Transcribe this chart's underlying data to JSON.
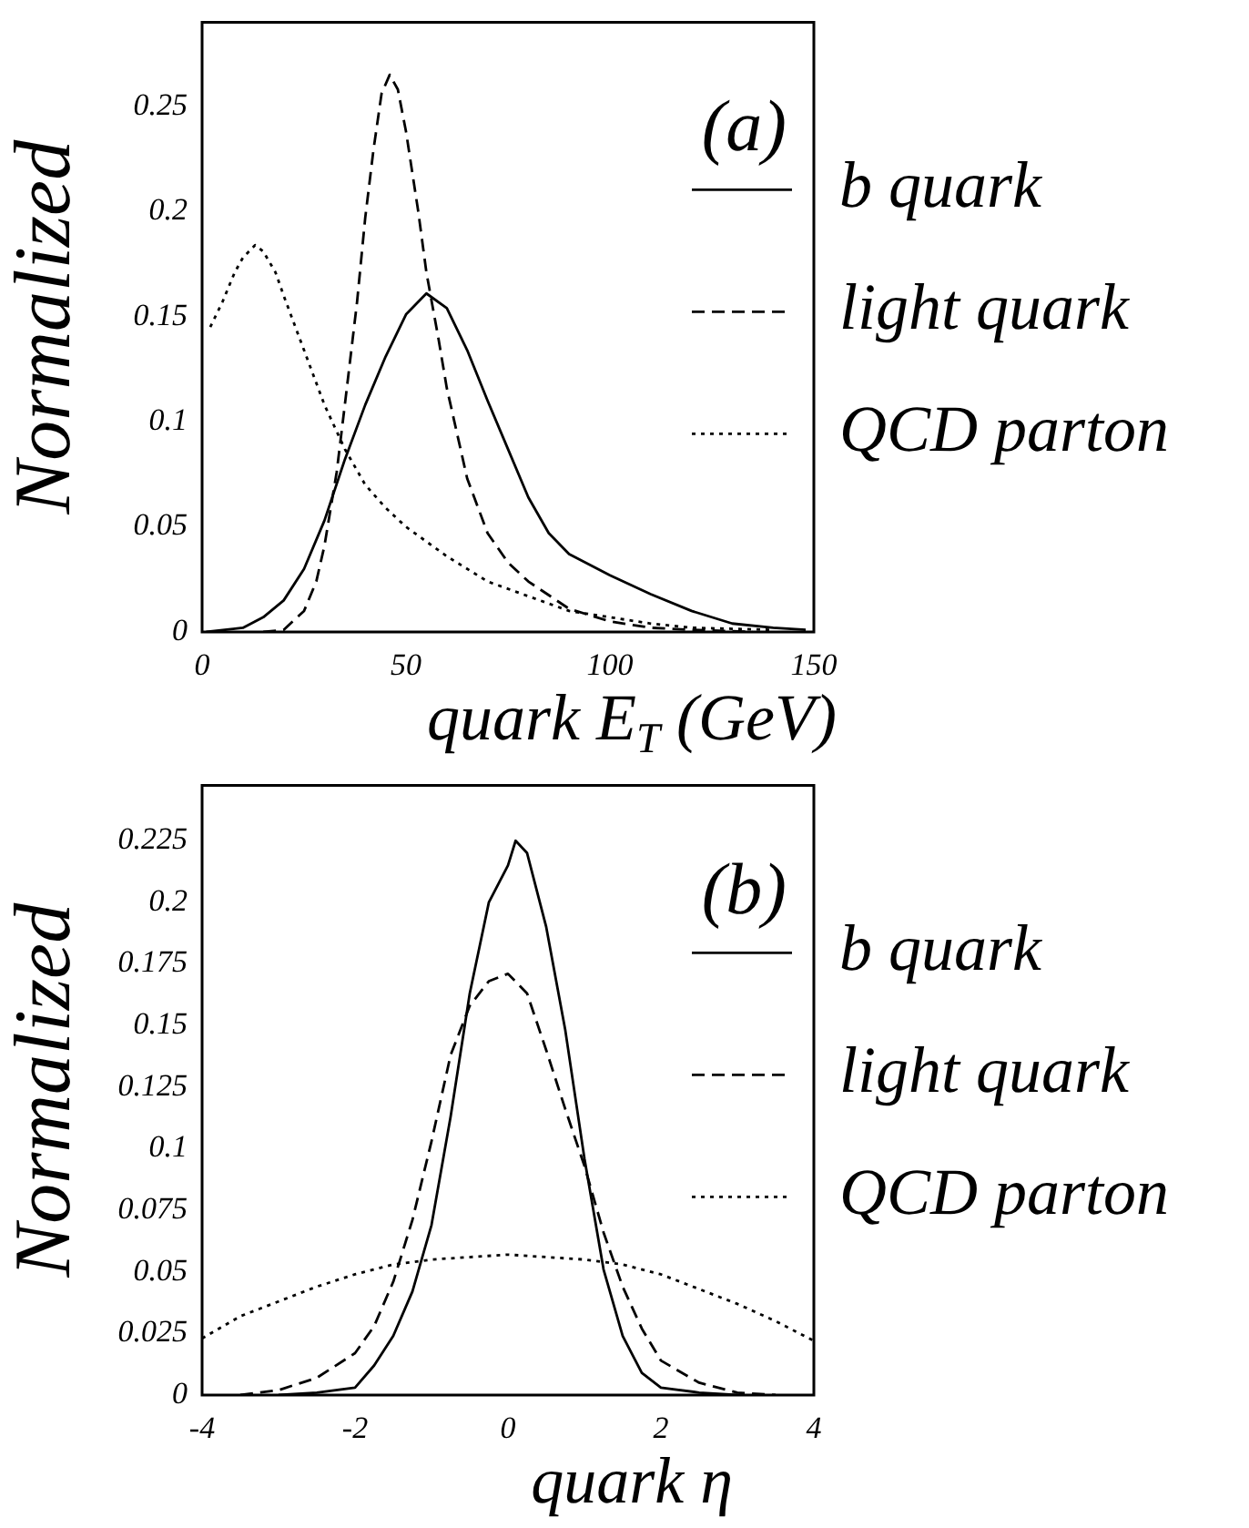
{
  "chart_data": [
    {
      "type": "line",
      "xlabel": "quark E$_{T}$ (GeV)",
      "ylabel": "Normalized",
      "annotations": [
        "(a)"
      ],
      "xlim": [
        0,
        150
      ],
      "xticks": [
        0,
        50,
        100,
        150
      ],
      "ylim": [
        0,
        0.29
      ],
      "yticks": [
        0,
        0.05,
        0.1,
        0.15,
        0.2,
        0.25
      ],
      "legend": "right",
      "marker": "none",
      "series": [
        {
          "name": "b quark",
          "color": "#000000",
          "line_style": "solid",
          "x": [
            1,
            10,
            15,
            20,
            25,
            30,
            35,
            40,
            45,
            50,
            55,
            60,
            65,
            70,
            75,
            80,
            85,
            90,
            100,
            110,
            120,
            130,
            140,
            148
          ],
          "values": [
            0,
            0.002,
            0.007,
            0.015,
            0.03,
            0.053,
            0.082,
            0.108,
            0.131,
            0.151,
            0.161,
            0.154,
            0.134,
            0.11,
            0.087,
            0.064,
            0.047,
            0.037,
            0.027,
            0.018,
            0.01,
            0.004,
            0.002,
            0.001
          ]
        },
        {
          "name": "light quark",
          "color": "#000000",
          "line_style": "dashed",
          "x": [
            15,
            20,
            25,
            28,
            30,
            33,
            35,
            38,
            40,
            42,
            44,
            46,
            48,
            50,
            53,
            55,
            58,
            60,
            65,
            70,
            75,
            80,
            90,
            100,
            110,
            120,
            135
          ],
          "values": [
            0,
            0.001,
            0.01,
            0.024,
            0.041,
            0.076,
            0.108,
            0.157,
            0.197,
            0.229,
            0.256,
            0.265,
            0.258,
            0.238,
            0.2,
            0.171,
            0.139,
            0.116,
            0.073,
            0.047,
            0.033,
            0.024,
            0.011,
            0.005,
            0.002,
            0.001,
            0
          ]
        },
        {
          "name": "QCD parton",
          "color": "#000000",
          "line_style": "dotted",
          "x": [
            2,
            5,
            8,
            10,
            13,
            15,
            18,
            20,
            25,
            30,
            35,
            40,
            45,
            50,
            55,
            60,
            70,
            80,
            90,
            100,
            110,
            120,
            140
          ],
          "values": [
            0.145,
            0.157,
            0.171,
            0.178,
            0.184,
            0.181,
            0.171,
            0.16,
            0.134,
            0.108,
            0.087,
            0.07,
            0.059,
            0.05,
            0.043,
            0.036,
            0.024,
            0.017,
            0.01,
            0.007,
            0.004,
            0.002,
            0.001
          ]
        }
      ]
    },
    {
      "type": "line",
      "xlabel": "quark η",
      "ylabel": "Normalized",
      "annotations": [
        "(b)"
      ],
      "xlim": [
        -4,
        4
      ],
      "xticks": [
        -4,
        -2,
        0,
        2,
        4
      ],
      "ylim": [
        0,
        0.2475
      ],
      "yticks": [
        0,
        0.025,
        0.05,
        0.075,
        0.1,
        0.125,
        0.15,
        0.175,
        0.2,
        0.225
      ],
      "legend": "right",
      "marker": "none",
      "series": [
        {
          "name": "b quark",
          "color": "#000000",
          "line_style": "solid",
          "x": [
            -3,
            -2.5,
            -2,
            -1.75,
            -1.5,
            -1.25,
            -1,
            -0.75,
            -0.5,
            -0.25,
            0,
            0.1,
            0.25,
            0.5,
            0.75,
            1,
            1.25,
            1.5,
            1.75,
            2,
            2.5,
            3
          ],
          "values": [
            0,
            0.001,
            0.003,
            0.012,
            0.024,
            0.042,
            0.069,
            0.113,
            0.163,
            0.2,
            0.215,
            0.225,
            0.22,
            0.19,
            0.148,
            0.096,
            0.051,
            0.024,
            0.009,
            0.003,
            0.001,
            0
          ]
        },
        {
          "name": "light quark",
          "color": "#000000",
          "line_style": "dashed",
          "x": [
            -3.5,
            -3,
            -2.5,
            -2,
            -1.75,
            -1.5,
            -1.25,
            -1,
            -0.75,
            -0.5,
            -0.25,
            0,
            0.25,
            0.5,
            0.75,
            1,
            1.25,
            1.5,
            1.75,
            2,
            2.5,
            3,
            3.5
          ],
          "values": [
            0,
            0.002,
            0.007,
            0.017,
            0.028,
            0.046,
            0.071,
            0.103,
            0.138,
            0.158,
            0.168,
            0.171,
            0.163,
            0.14,
            0.116,
            0.093,
            0.066,
            0.044,
            0.027,
            0.014,
            0.005,
            0.001,
            0
          ]
        },
        {
          "name": "QCD parton",
          "color": "#000000",
          "line_style": "dotted",
          "x": [
            -4,
            -3.5,
            -3,
            -2.5,
            -2,
            -1.5,
            -1,
            0,
            1,
            1.5,
            2,
            2.5,
            3,
            3.5,
            4
          ],
          "values": [
            0.023,
            0.032,
            0.038,
            0.044,
            0.049,
            0.053,
            0.055,
            0.057,
            0.055,
            0.053,
            0.049,
            0.043,
            0.037,
            0.03,
            0.022
          ]
        }
      ]
    }
  ]
}
